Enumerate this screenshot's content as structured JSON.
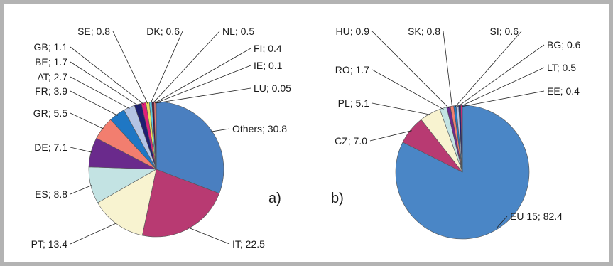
{
  "chart_data": [
    {
      "type": "pie",
      "panel_label": "a)",
      "slices": [
        {
          "label": "Others",
          "value": 30.8,
          "text": "Others; 30.8",
          "color": "#4a7fc0"
        },
        {
          "label": "IT",
          "value": 22.5,
          "text": "IT; 22.5",
          "color": "#b83a72"
        },
        {
          "label": "PT",
          "value": 13.4,
          "text": "PT; 13.4",
          "color": "#f8f3d0"
        },
        {
          "label": "ES",
          "value": 8.8,
          "text": "ES; 8.8",
          "color": "#c3e3e3"
        },
        {
          "label": "DE",
          "value": 7.1,
          "text": "DE; 7.1",
          "color": "#6a2a8c"
        },
        {
          "label": "GR",
          "value": 5.5,
          "text": "GR; 5.5",
          "color": "#f27e6f"
        },
        {
          "label": "FR",
          "value": 3.9,
          "text": "FR; 3.9",
          "color": "#1f77c4"
        },
        {
          "label": "AT",
          "value": 2.7,
          "text": "AT; 2.7",
          "color": "#b4c4e4"
        },
        {
          "label": "BE",
          "value": 1.7,
          "text": "BE; 1.7",
          "color": "#1f1f70"
        },
        {
          "label": "GB",
          "value": 1.1,
          "text": "GB; 1.1",
          "color": "#e0207a"
        },
        {
          "label": "SE",
          "value": 0.8,
          "text": "SE; 0.8",
          "color": "#e8e060"
        },
        {
          "label": "DK",
          "value": 0.6,
          "text": "DK; 0.6",
          "color": "#5ec8e0"
        },
        {
          "label": "NL",
          "value": 0.5,
          "text": "NL; 0.5",
          "color": "#4b0f40"
        },
        {
          "label": "FI",
          "value": 0.4,
          "text": "FI; 0.4",
          "color": "#e87a70"
        },
        {
          "label": "IE",
          "value": 0.1,
          "text": "IE; 0.1",
          "color": "#1a60a8"
        },
        {
          "label": "LU",
          "value": 0.05,
          "text": "LU; 0.05",
          "color": "#c8d4ee"
        }
      ]
    },
    {
      "type": "pie",
      "panel_label": "b)",
      "slices": [
        {
          "label": "EU 15",
          "value": 82.4,
          "text": "EU 15; 82.4",
          "color": "#4a86c6"
        },
        {
          "label": "CZ",
          "value": 7.0,
          "text": "CZ; 7.0",
          "color": "#b83a72"
        },
        {
          "label": "PL",
          "value": 5.1,
          "text": "PL; 5.1",
          "color": "#f8f3d0"
        },
        {
          "label": "RO",
          "value": 1.7,
          "text": "RO; 1.7",
          "color": "#c3e3e3"
        },
        {
          "label": "HU",
          "value": 0.9,
          "text": "HU; 0.9",
          "color": "#6a2a8c"
        },
        {
          "label": "SK",
          "value": 0.8,
          "text": "SK; 0.8",
          "color": "#f27e6f"
        },
        {
          "label": "SI",
          "value": 0.6,
          "text": "SI; 0.6",
          "color": "#1f77c4"
        },
        {
          "label": "BG",
          "value": 0.6,
          "text": "BG; 0.6",
          "color": "#b4c4e4"
        },
        {
          "label": "LT",
          "value": 0.5,
          "text": "LT; 0.5",
          "color": "#1f1f70"
        },
        {
          "label": "EE",
          "value": 0.4,
          "text": "EE; 0.4",
          "color": "#e0207a"
        }
      ]
    }
  ]
}
